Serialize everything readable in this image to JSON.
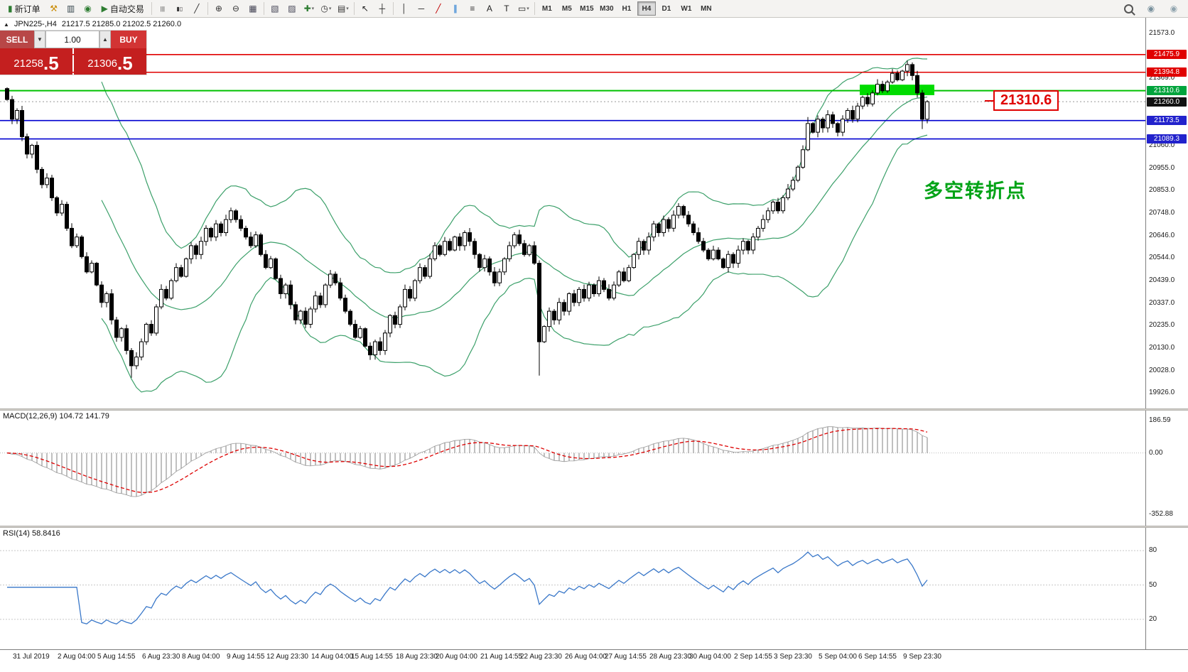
{
  "toolbar": {
    "items": [
      {
        "type": "button",
        "name": "new-order-button",
        "icon": "new-order-icon",
        "glyph": "▮",
        "glyph_color": "#2e7d32",
        "label": "新订单"
      },
      {
        "type": "icon",
        "name": "metaeditor-icon",
        "glyph": "⚒",
        "glyph_color": "#c98a00"
      },
      {
        "type": "icon",
        "name": "terminal-icon",
        "glyph": "▥",
        "glyph_color": "#37474f"
      },
      {
        "type": "icon",
        "name": "strategy-tester-icon",
        "glyph": "◉",
        "glyph_color": "#2e7d32"
      },
      {
        "type": "button",
        "name": "autotrading-button",
        "icon": "autotrading-play-icon",
        "glyph": "▶",
        "glyph_color": "#2e7d32",
        "label": "自动交易"
      },
      {
        "type": "sep"
      },
      {
        "type": "icon",
        "name": "ohlc-bars-icon",
        "glyph": "|||",
        "glyph_color": "#333",
        "small": true
      },
      {
        "type": "icon",
        "name": "candlestick-chart-icon",
        "glyph": "▮▯",
        "glyph_color": "#333",
        "small": true
      },
      {
        "type": "icon",
        "name": "line-chart-icon",
        "glyph": "╱",
        "glyph_color": "#333"
      },
      {
        "type": "sep"
      },
      {
        "type": "icon",
        "name": "zoom-in-icon",
        "glyph": "⊕",
        "glyph_color": "#333"
      },
      {
        "type": "icon",
        "name": "zoom-out-icon",
        "glyph": "⊖",
        "glyph_color": "#333"
      },
      {
        "type": "icon",
        "name": "tile-windows-icon",
        "glyph": "▦",
        "glyph_color": "#445"
      },
      {
        "type": "sep"
      },
      {
        "type": "icon",
        "name": "arrange-windows-icon",
        "glyph": "▧",
        "glyph_color": "#445"
      },
      {
        "type": "icon",
        "name": "cascade-windows-icon",
        "glyph": "▨",
        "glyph_color": "#445"
      },
      {
        "type": "icon",
        "name": "indicators-icon",
        "glyph": "✚",
        "glyph_color": "#2e7d32",
        "dropdown": true
      },
      {
        "type": "icon",
        "name": "periods-icon",
        "glyph": "◷",
        "glyph_color": "#333",
        "dropdown": true
      },
      {
        "type": "icon",
        "name": "templates-icon",
        "glyph": "▤",
        "glyph_color": "#333",
        "dropdown": true
      },
      {
        "type": "sep"
      },
      {
        "type": "icon",
        "name": "cursor-icon",
        "glyph": "↖",
        "glyph_color": "#222"
      },
      {
        "type": "icon",
        "name": "crosshair-icon",
        "glyph": "┼",
        "glyph_color": "#222"
      },
      {
        "type": "sep"
      },
      {
        "type": "icon",
        "name": "vertical-line-icon",
        "glyph": "│",
        "glyph_color": "#222"
      },
      {
        "type": "icon",
        "name": "horizontal-line-icon",
        "glyph": "─",
        "glyph_color": "#222"
      },
      {
        "type": "icon",
        "name": "trendline-icon",
        "glyph": "╱",
        "glyph_color": "#c00000"
      },
      {
        "type": "icon",
        "name": "equidistant-channel-icon",
        "glyph": "∥",
        "glyph_color": "#0066cc"
      },
      {
        "type": "icon",
        "name": "fibonacci-icon",
        "glyph": "≡",
        "glyph_color": "#333"
      },
      {
        "type": "icon",
        "name": "text-icon",
        "glyph": "A",
        "glyph_color": "#222"
      },
      {
        "type": "icon",
        "name": "text-label-icon",
        "glyph": "T",
        "glyph_color": "#222"
      },
      {
        "type": "icon",
        "name": "shapes-icon",
        "glyph": "▭",
        "glyph_color": "#222",
        "dropdown": true
      },
      {
        "type": "sep"
      },
      {
        "type": "tf"
      }
    ],
    "timeframes": [
      "M1",
      "M5",
      "M15",
      "M30",
      "H1",
      "H4",
      "D1",
      "W1",
      "MN"
    ],
    "active_timeframe": "H4",
    "right_icons": [
      {
        "name": "search-icon",
        "kind": "magnifier"
      },
      {
        "name": "community-icon",
        "glyph": "◉",
        "glyph_color": "#78909c"
      },
      {
        "name": "profile-icon",
        "glyph": "◉",
        "glyph_color": "#90a4ae"
      }
    ]
  },
  "chart": {
    "symbol_label": "JPN225-,H4",
    "ohlc_text": "21217.5 21285.0 21202.5 21260.0",
    "trade_panel": {
      "sell_label": "SELL",
      "buy_label": "BUY",
      "volume": "1.00",
      "spin_down": "▼",
      "spin_up": "▲",
      "sell_price_main": "21258",
      "sell_price_frac": ".5",
      "buy_price_main": "21306",
      "buy_price_frac": ".5"
    },
    "callout_text": "21310.6",
    "annotation_text": "多空转折点",
    "current_price": 21260.0,
    "price_axis": {
      "plain": [
        "21573.0",
        "21369.0",
        "21060.0",
        "20955.0",
        "20853.0",
        "20748.0",
        "20646.0",
        "20544.0",
        "20439.0",
        "20337.0",
        "20235.0",
        "20130.0",
        "20028.0",
        "19926.0"
      ],
      "badges": [
        {
          "text": "21475.9",
          "price": 21475.9,
          "color": "#e00000"
        },
        {
          "text": "21394.8",
          "price": 21394.8,
          "color": "#e00000"
        },
        {
          "text": "21310.6",
          "price": 21310.6,
          "color": "#00a43c"
        },
        {
          "text": "21260.0",
          "price": 21260.0,
          "color": "#111111"
        },
        {
          "text": "21173.5",
          "price": 21173.5,
          "color": "#2222cc"
        },
        {
          "text": "21089.3",
          "price": 21089.3,
          "color": "#2222cc"
        }
      ]
    }
  },
  "chart_data": {
    "type": "candlestick",
    "symbol": "JPN225-",
    "timeframe": "H4",
    "ohlc_current": {
      "open": 21217.5,
      "high": 21285.0,
      "low": 21202.5,
      "close": 21260.0
    },
    "price_range": {
      "min": 19926.0,
      "max": 21573.0
    },
    "first_open": 21320,
    "closes": [
      21270,
      21180,
      21220,
      21100,
      21020,
      21060,
      20950,
      20880,
      20910,
      20820,
      20750,
      20790,
      20680,
      20600,
      20640,
      20550,
      20480,
      20520,
      20420,
      20340,
      20380,
      20260,
      20180,
      20220,
      20120,
      20050,
      20090,
      20160,
      20240,
      20200,
      20320,
      20400,
      20360,
      20440,
      20500,
      20460,
      20540,
      20600,
      20560,
      20620,
      20680,
      20640,
      20700,
      20660,
      20720,
      20760,
      20720,
      20680,
      20640,
      20600,
      20650,
      20560,
      20500,
      20540,
      20450,
      20380,
      20420,
      20330,
      20260,
      20300,
      20240,
      20310,
      20370,
      20330,
      20420,
      20470,
      20430,
      20360,
      20300,
      20240,
      20180,
      20220,
      20140,
      20100,
      20160,
      20120,
      20200,
      20280,
      20240,
      20320,
      20400,
      20360,
      20440,
      20500,
      20460,
      20540,
      20600,
      20560,
      20620,
      20580,
      20640,
      20600,
      20660,
      20620,
      20560,
      20500,
      20540,
      20480,
      20430,
      20480,
      20540,
      20600,
      20650,
      20610,
      20560,
      20600,
      20520,
      20160,
      20230,
      20300,
      20260,
      20340,
      20300,
      20380,
      20340,
      20400,
      20360,
      20420,
      20380,
      20440,
      20400,
      20360,
      20420,
      20480,
      20440,
      20500,
      20560,
      20620,
      20580,
      20640,
      20700,
      20660,
      20720,
      20680,
      20740,
      20780,
      20740,
      20700,
      20660,
      20620,
      20580,
      20540,
      20580,
      20540,
      20500,
      20560,
      20520,
      20580,
      20620,
      20580,
      20640,
      20680,
      20720,
      20760,
      20800,
      20760,
      20820,
      20860,
      20900,
      20960,
      21040,
      21160,
      21120,
      21180,
      21140,
      21200,
      21160,
      21120,
      21180,
      21220,
      21180,
      21240,
      21280,
      21250,
      21300,
      21340,
      21310,
      21350,
      21390,
      21360,
      21400,
      21430,
      21380,
      21300,
      21180,
      21260
    ],
    "wick_overrides": {
      "25": {
        "low": 19995
      },
      "107": {
        "low": 20005
      },
      "161": {
        "high": 21190
      },
      "181": {
        "high": 21448
      },
      "184": {
        "low": 21135
      }
    },
    "levels": [
      {
        "name": "resistance-line-upper",
        "price": 21475.9,
        "color": "#e00000"
      },
      {
        "name": "resistance-line-lower",
        "price": 21394.8,
        "color": "#e00000"
      },
      {
        "name": "pivot-line-green",
        "price": 21310.6,
        "color": "#00c000"
      },
      {
        "name": "support-line-upper",
        "price": 21173.5,
        "color": "#0000d0"
      },
      {
        "name": "support-line-lower",
        "price": 21089.3,
        "color": "#0000d0"
      }
    ],
    "highlight_rect": {
      "bar_from": 172,
      "bar_to": 185,
      "price_top": 21338,
      "price_bottom": 21290,
      "color": "#00dc00"
    },
    "indicators": {
      "bollinger": {
        "period": 20,
        "deviation": 2,
        "color": "#3ca06a"
      },
      "macd": {
        "label": "MACD(12,26,9) 104.72 141.79",
        "params": [
          12,
          26,
          9
        ],
        "main_value": 104.72,
        "signal_value": 141.79,
        "histogram_color": "#808080",
        "signal_color": "#dd0000",
        "axis": [
          {
            "text": "186.59",
            "value": 186.59
          },
          {
            "text": "0.00",
            "value": 0
          },
          {
            "text": "-352.88",
            "value": -352.88
          }
        ],
        "range": {
          "min": -352.88,
          "max": 186.59
        }
      },
      "rsi": {
        "label": "RSI(14) 58.8416",
        "period": 14,
        "value": 58.8416,
        "color": "#3a78c9",
        "levels": [
          {
            "text": "80",
            "value": 80
          },
          {
            "text": "50",
            "value": 50
          },
          {
            "text": "20",
            "value": 20
          }
        ],
        "range": {
          "min": 0,
          "max": 100
        }
      }
    },
    "time_labels": [
      {
        "label": "31 Jul 2019",
        "bar": 2
      },
      {
        "label": "2 Aug 04:00",
        "bar": 11
      },
      {
        "label": "5 Aug 14:55",
        "bar": 19
      },
      {
        "label": "6 Aug 23:30",
        "bar": 28
      },
      {
        "label": "8 Aug 04:00",
        "bar": 36
      },
      {
        "label": "9 Aug 14:55",
        "bar": 45
      },
      {
        "label": "12 Aug 23:30",
        "bar": 53
      },
      {
        "label": "14 Aug 04:00",
        "bar": 62
      },
      {
        "label": "15 Aug 14:55",
        "bar": 70
      },
      {
        "label": "18 Aug 23:30",
        "bar": 79
      },
      {
        "label": "20 Aug 04:00",
        "bar": 87
      },
      {
        "label": "21 Aug 14:55",
        "bar": 96
      },
      {
        "label": "22 Aug 23:30",
        "bar": 104
      },
      {
        "label": "26 Aug 04:00",
        "bar": 113
      },
      {
        "label": "27 Aug 14:55",
        "bar": 121
      },
      {
        "label": "28 Aug 23:30",
        "bar": 130
      },
      {
        "label": "30 Aug 04:00",
        "bar": 138
      },
      {
        "label": "2 Sep 14:55",
        "bar": 147
      },
      {
        "label": "3 Sep 23:30",
        "bar": 155
      },
      {
        "label": "5 Sep 04:00",
        "bar": 164
      },
      {
        "label": "6 Sep 14:55",
        "bar": 172
      },
      {
        "label": "9 Sep 23:30",
        "bar": 181
      }
    ]
  }
}
